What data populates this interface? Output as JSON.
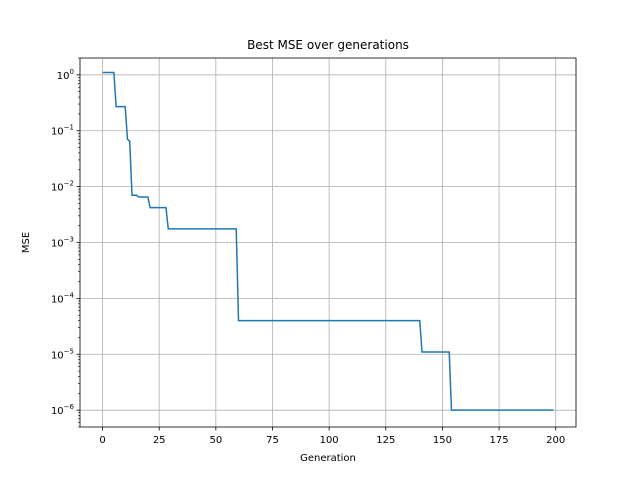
{
  "chart_data": {
    "type": "line",
    "title": "Best MSE over generations",
    "xlabel": "Generation",
    "ylabel": "MSE",
    "xlim": [
      -9.95,
      208.95
    ],
    "ylim": [
      5e-07,
      2.0
    ],
    "yscale": "log",
    "grid": true,
    "x_ticks": [
      0,
      25,
      50,
      75,
      100,
      125,
      150,
      175,
      200
    ],
    "y_ticks": [
      {
        "value": 1,
        "label": "10",
        "exp": "0"
      },
      {
        "value": 0.1,
        "label": "10",
        "exp": "−1"
      },
      {
        "value": 0.01,
        "label": "10",
        "exp": "−2"
      },
      {
        "value": 0.001,
        "label": "10",
        "exp": "−3"
      },
      {
        "value": 0.0001,
        "label": "10",
        "exp": "−4"
      },
      {
        "value": 1e-05,
        "label": "10",
        "exp": "−5"
      },
      {
        "value": 1e-06,
        "label": "10",
        "exp": "−6"
      }
    ],
    "series": [
      {
        "color": "#1f77b4",
        "x": [
          0,
          5,
          6,
          10,
          11,
          12,
          13,
          15,
          16,
          20,
          21,
          28,
          29,
          59,
          60,
          140,
          141,
          153,
          154,
          199
        ],
        "values": [
          1.1,
          1.1,
          0.27,
          0.27,
          0.07,
          0.065,
          0.007,
          0.007,
          0.0065,
          0.0065,
          0.0042,
          0.0042,
          0.00175,
          0.00175,
          4e-05,
          4e-05,
          1.1e-05,
          1.1e-05,
          1e-06,
          1e-06
        ]
      }
    ]
  },
  "colors": {
    "line": "#1f77b4",
    "grid": "#b0b0b0",
    "axes": "#000000",
    "background": "#ffffff"
  }
}
